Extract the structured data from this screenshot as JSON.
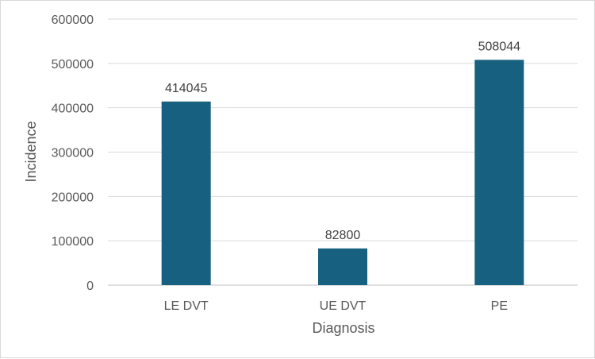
{
  "chart_data": {
    "type": "bar",
    "categories": [
      "LE DVT",
      "UE DVT",
      "PE"
    ],
    "values": [
      414045,
      82800,
      508044
    ],
    "data_labels": [
      "414045",
      "82800",
      "508044"
    ],
    "title": "",
    "xlabel": "Diagnosis",
    "ylabel": "Incidence",
    "ylim": [
      0,
      600000
    ],
    "yticks": [
      "0",
      "100000",
      "200000",
      "300000",
      "400000",
      "500000",
      "600000"
    ],
    "grid": true,
    "legend": "none",
    "bar_color": "#17607f",
    "grid_color": "#d9d9d9",
    "axis_color": "#bfbfbf"
  }
}
